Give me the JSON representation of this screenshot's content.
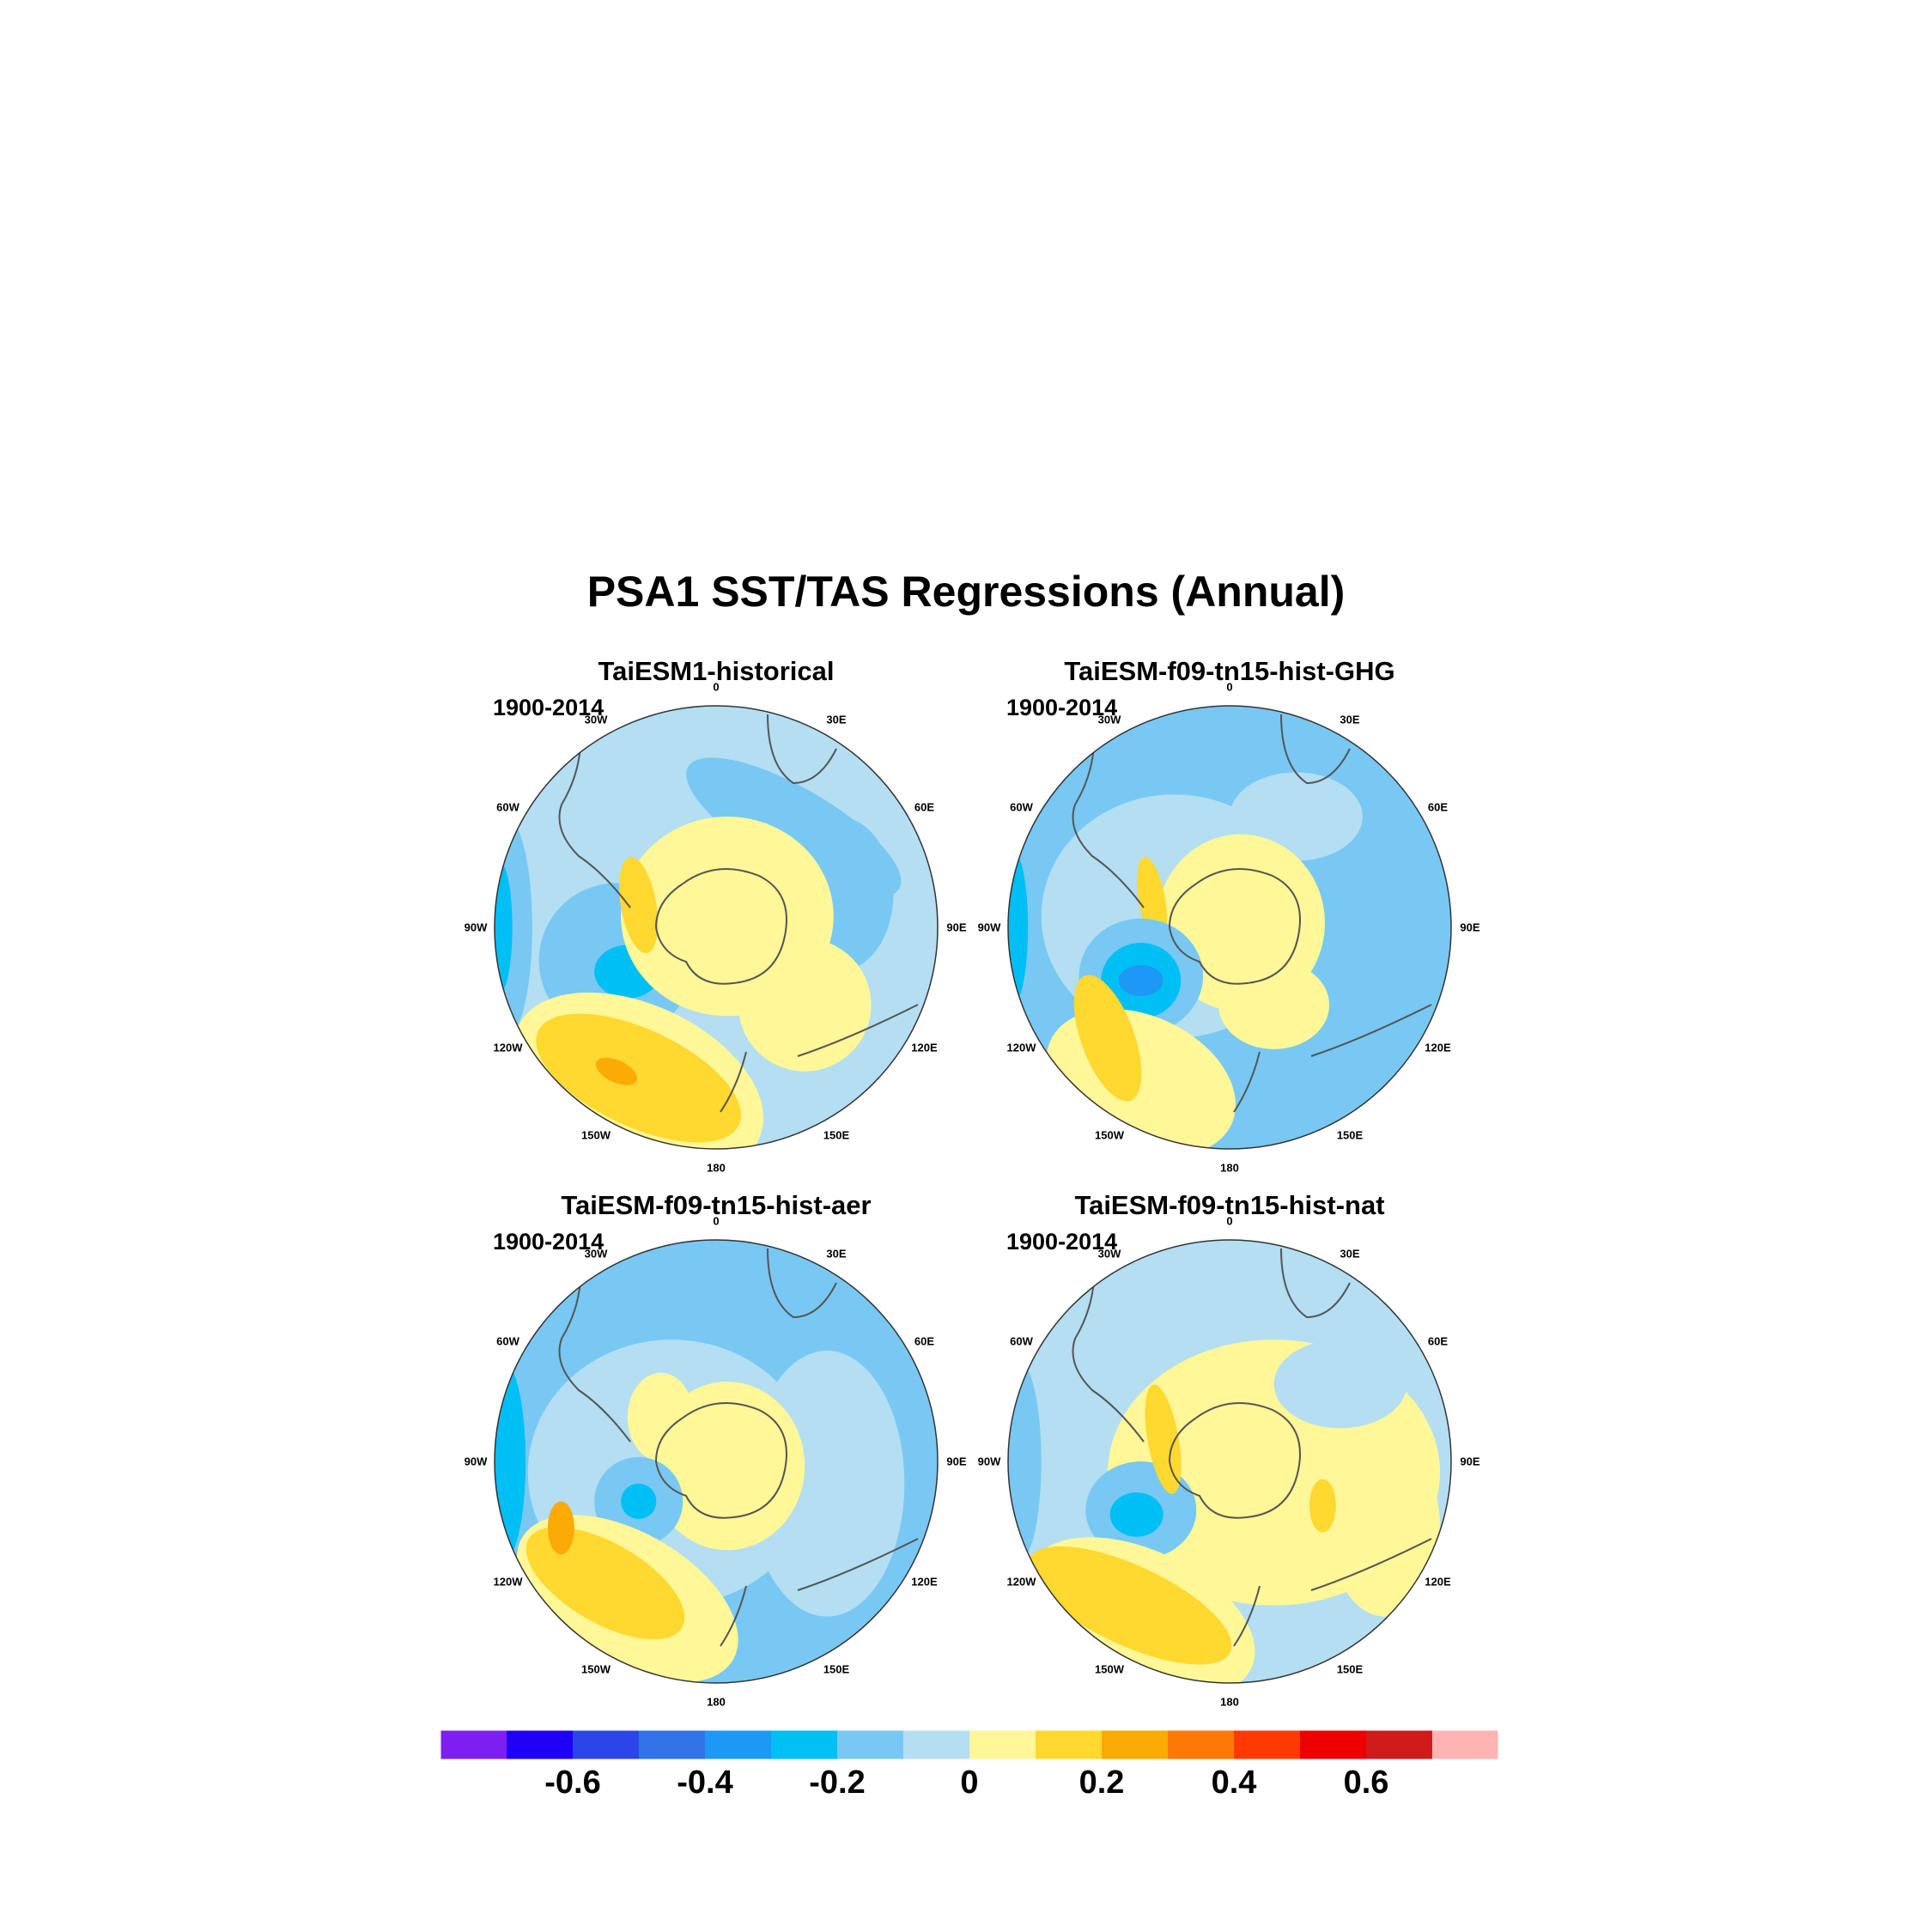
{
  "title": "PSA1 SST/TAS Regressions (Annual)",
  "panels": [
    {
      "name": "TaiESM1-historical",
      "period": "1900-2014"
    },
    {
      "name": "TaiESM-f09-tn15-hist-GHG",
      "period": "1900-2014"
    },
    {
      "name": "TaiESM-f09-tn15-hist-aer",
      "period": "1900-2014"
    },
    {
      "name": "TaiESM-f09-tn15-hist-nat",
      "period": "1900-2014"
    }
  ],
  "longitude_labels": [
    "0",
    "30E",
    "60E",
    "90E",
    "120E",
    "150E",
    "180",
    "150W",
    "120W",
    "90W",
    "60W",
    "30W"
  ],
  "colorbar": {
    "colors": [
      "#7d1ff0",
      "#1e00f5",
      "#2b45e8",
      "#3273e8",
      "#1d98f5",
      "#00bff5",
      "#78c8f3",
      "#b4def2",
      "#fff798",
      "#ffd830",
      "#fcaa05",
      "#fd7905",
      "#ff3a00",
      "#ec0000",
      "#cf1b1b",
      "#ffb4b4"
    ],
    "tick_labels": [
      "-0.6",
      "-0.4",
      "-0.2",
      "0",
      "0.2",
      "0.4",
      "0.6"
    ]
  },
  "chart_data": {
    "type": "heatmap",
    "title": "PSA1 SST/TAS Regressions (Annual)",
    "projection": "polar stereographic, Southern Hemisphere",
    "levels": [
      -0.7,
      -0.6,
      -0.5,
      -0.4,
      -0.3,
      -0.2,
      -0.1,
      0,
      0.1,
      0.2,
      0.3,
      0.4,
      0.5,
      0.6,
      0.7
    ],
    "panels": [
      "TaiESM1-historical",
      "TaiESM-f09-tn15-hist-GHG",
      "TaiESM-f09-tn15-hist-aer",
      "TaiESM-f09-tn15-hist-nat"
    ]
  }
}
